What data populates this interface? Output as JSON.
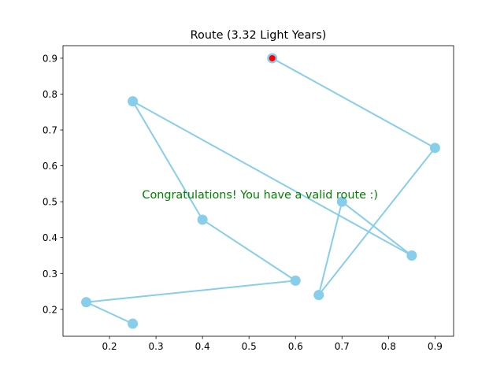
{
  "chart_data": {
    "type": "line",
    "title": "Route (3.32 Light Years)",
    "xlabel": "",
    "ylabel": "",
    "xlim": [
      0.1,
      0.94
    ],
    "ylim": [
      0.125,
      0.935
    ],
    "x_ticks": [
      0.2,
      0.3,
      0.4,
      0.5,
      0.6,
      0.7,
      0.8,
      0.9
    ],
    "y_ticks": [
      0.2,
      0.3,
      0.4,
      0.5,
      0.6,
      0.7,
      0.8,
      0.9
    ],
    "grid": false,
    "series": [
      {
        "route_points": [
          {
            "x": 0.55,
            "y": 0.9
          },
          {
            "x": 0.9,
            "y": 0.65
          },
          {
            "x": 0.65,
            "y": 0.24
          },
          {
            "x": 0.7,
            "y": 0.5
          },
          {
            "x": 0.85,
            "y": 0.35
          },
          {
            "x": 0.25,
            "y": 0.78
          },
          {
            "x": 0.4,
            "y": 0.45
          },
          {
            "x": 0.6,
            "y": 0.28
          },
          {
            "x": 0.15,
            "y": 0.22
          },
          {
            "x": 0.25,
            "y": 0.16
          }
        ]
      }
    ],
    "start_point": {
      "x": 0.55,
      "y": 0.9
    },
    "annotation": {
      "text": "Congratulations! You have a valid route :)",
      "x": 0.5,
      "y": 0.52
    },
    "colors": {
      "route_line": "#87ceeb",
      "route_marker": "#87ceeb",
      "start_marker": "#ff0000",
      "annotation": "#008000",
      "axes": "#000000"
    }
  }
}
